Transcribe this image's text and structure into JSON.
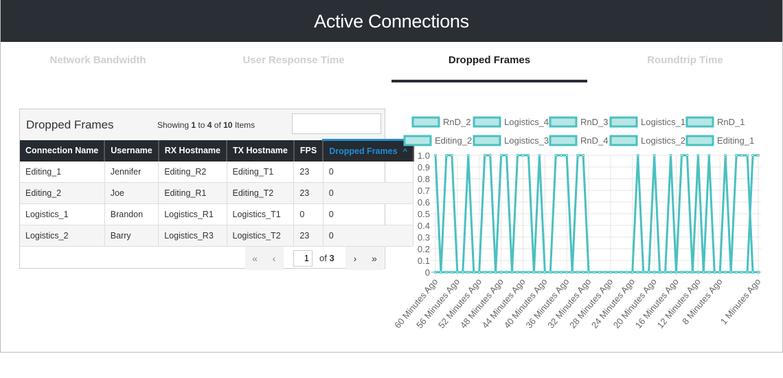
{
  "header": {
    "title": "Active Connections"
  },
  "tabs": [
    {
      "label": "Network Bandwidth",
      "active": false
    },
    {
      "label": "User Response Time",
      "active": false
    },
    {
      "label": "Dropped Frames",
      "active": true
    },
    {
      "label": "Roundtrip Time",
      "active": false
    }
  ],
  "table": {
    "title": "Dropped Frames",
    "showing": {
      "prefix": "Showing ",
      "from": "1",
      "to_label": " to ",
      "to": "4",
      "of_label": " of ",
      "total": "10",
      "suffix": " Items"
    },
    "search_value": "",
    "columns": [
      "Connection Name",
      "Username",
      "RX Hostname",
      "TX Hostname",
      "FPS",
      "Dropped Frames"
    ],
    "sort_icon": "^",
    "rows": [
      [
        "Editing_1",
        "Jennifer",
        "Editing_R2",
        "Editing_T1",
        "23",
        "0"
      ],
      [
        "Editing_2",
        "Joe",
        "Editing_R1",
        "Editing_T2",
        "23",
        "0"
      ],
      [
        "Logistics_1",
        "Brandon",
        "Logistics_R1",
        "Logistics_T1",
        "0",
        "0"
      ],
      [
        "Logistics_2",
        "Barry",
        "Logistics_R3",
        "Logistics_T2",
        "23",
        "0"
      ]
    ],
    "pager": {
      "first": "«",
      "prev": "‹",
      "page": "1",
      "of": "of",
      "pages": "3",
      "next": "›",
      "last": "»"
    }
  },
  "chart_data": {
    "type": "line",
    "color": "#4bc0c0",
    "ylim": [
      0,
      1
    ],
    "yticks": [
      "1.0",
      "0.9",
      "0.8",
      "0.7",
      "0.6",
      "0.5",
      "0.4",
      "0.3",
      "0.2",
      "0.1",
      "0"
    ],
    "x": [
      "60 Minutes Ago",
      "59 Minutes Ago",
      "58 Minutes Ago",
      "57 Minutes Ago",
      "56 Minutes Ago",
      "55 Minutes Ago",
      "54 Minutes Ago",
      "53 Minutes Ago",
      "52 Minutes Ago",
      "51 Minutes Ago",
      "50 Minutes Ago",
      "49 Minutes Ago",
      "48 Minutes Ago",
      "47 Minutes Ago",
      "46 Minutes Ago",
      "45 Minutes Ago",
      "44 Minutes Ago",
      "43 Minutes Ago",
      "42 Minutes Ago",
      "41 Minutes Ago",
      "40 Minutes Ago",
      "39 Minutes Ago",
      "38 Minutes Ago",
      "37 Minutes Ago",
      "36 Minutes Ago",
      "35 Minutes Ago",
      "34 Minutes Ago",
      "33 Minutes Ago",
      "32 Minutes Ago",
      "31 Minutes Ago",
      "30 Minutes Ago",
      "29 Minutes Ago",
      "28 Minutes Ago",
      "27 Minutes Ago",
      "26 Minutes Ago",
      "25 Minutes Ago",
      "24 Minutes Ago",
      "23 Minutes Ago",
      "22 Minutes Ago",
      "21 Minutes Ago",
      "20 Minutes Ago",
      "19 Minutes Ago",
      "18 Minutes Ago",
      "17 Minutes Ago",
      "16 Minutes Ago",
      "15 Minutes Ago",
      "14 Minutes Ago",
      "13 Minutes Ago",
      "12 Minutes Ago",
      "11 Minutes Ago",
      "10 Minutes Ago",
      "9 Minutes Ago",
      "8 Minutes Ago",
      "7 Minutes Ago",
      "6 Minutes Ago",
      "5 Minutes Ago",
      "4 Minutes Ago",
      "3 Minutes Ago",
      "2 Minutes Ago",
      "1 Minutes Ago"
    ],
    "xtick_labels": [
      "60 Minutes Ago",
      "56 Minutes Ago",
      "52 Minutes Ago",
      "48 Minutes Ago",
      "44 Minutes Ago",
      "40 Minutes Ago",
      "36 Minutes Ago",
      "32 Minutes Ago",
      "28 Minutes Ago",
      "24 Minutes Ago",
      "20 Minutes Ago",
      "16 Minutes Ago",
      "12 Minutes Ago",
      "8 Minutes Ago",
      "1 Minutes Ago"
    ],
    "series": [
      {
        "name": "RnD_2",
        "values": [
          1,
          0,
          1,
          1,
          0,
          0,
          0,
          0,
          0,
          0,
          0,
          0,
          0,
          0,
          0,
          0,
          0,
          0,
          0,
          0,
          0,
          0,
          0,
          0,
          0,
          0,
          0,
          0,
          0,
          0,
          0,
          0,
          0,
          0,
          0,
          0,
          0,
          0,
          0,
          0,
          0,
          0,
          0,
          0,
          0,
          0,
          0,
          0,
          0,
          0,
          0,
          0,
          0,
          0,
          0,
          0,
          0,
          0,
          0,
          0
        ]
      },
      {
        "name": "Logistics_4",
        "values": [
          0,
          0,
          0,
          0,
          0,
          0,
          1,
          0,
          0,
          1,
          1,
          0,
          0,
          0,
          0,
          0,
          0,
          0,
          0,
          0,
          0,
          0,
          0,
          0,
          0,
          0,
          0,
          0,
          0,
          0,
          0,
          0,
          0,
          0,
          0,
          0,
          0,
          0,
          0,
          0,
          0,
          0,
          0,
          0,
          0,
          0,
          0,
          0,
          0,
          0,
          0,
          0,
          0,
          0,
          0,
          0,
          0,
          0,
          0,
          0
        ]
      },
      {
        "name": "RnD_3",
        "values": [
          0,
          0,
          0,
          0,
          0,
          0,
          0,
          0,
          0,
          0,
          0,
          0,
          1,
          1,
          0,
          1,
          1,
          1,
          0,
          0,
          0,
          0,
          0,
          0,
          0,
          0,
          0,
          0,
          0,
          0,
          0,
          0,
          0,
          0,
          0,
          0,
          0,
          0,
          0,
          0,
          0,
          0,
          0,
          0,
          0,
          0,
          0,
          0,
          0,
          0,
          0,
          0,
          0,
          0,
          0,
          0,
          0,
          0,
          0,
          0
        ]
      },
      {
        "name": "Logistics_1",
        "values": [
          0,
          0,
          0,
          0,
          0,
          0,
          0,
          0,
          0,
          0,
          0,
          0,
          0,
          0,
          0,
          0,
          0,
          0,
          0,
          1,
          0,
          0,
          1,
          1,
          1,
          0,
          0,
          0,
          0,
          0,
          0,
          0,
          0,
          0,
          0,
          0,
          0,
          0,
          0,
          0,
          0,
          0,
          0,
          0,
          0,
          0,
          0,
          0,
          0,
          0,
          0,
          0,
          0,
          0,
          0,
          0,
          0,
          0,
          0,
          0
        ]
      },
      {
        "name": "RnD_1",
        "values": [
          0,
          0,
          0,
          0,
          0,
          0,
          0,
          0,
          0,
          0,
          0,
          0,
          0,
          0,
          0,
          0,
          0,
          0,
          0,
          0,
          0,
          0,
          0,
          0,
          0,
          0,
          1,
          1,
          0,
          0,
          0,
          0,
          0,
          0,
          0,
          0,
          0,
          0,
          0,
          0,
          0,
          0,
          0,
          0,
          0,
          0,
          0,
          0,
          0,
          0,
          0,
          0,
          0,
          0,
          0,
          0,
          0,
          0,
          0,
          0
        ]
      },
      {
        "name": "Editing_2",
        "values": [
          0,
          0,
          0,
          0,
          0,
          0,
          0,
          0,
          0,
          0,
          0,
          0,
          0,
          0,
          0,
          0,
          0,
          0,
          0,
          0,
          0,
          0,
          0,
          0,
          0,
          0,
          0,
          0,
          0,
          0,
          0,
          0,
          0,
          0,
          0,
          0,
          0,
          1,
          0,
          0,
          1,
          0,
          0,
          0,
          0,
          0,
          0,
          0,
          0,
          0,
          0,
          0,
          0,
          0,
          0,
          0,
          0,
          0,
          0,
          0
        ]
      },
      {
        "name": "Logistics_3",
        "values": [
          0,
          0,
          0,
          0,
          0,
          0,
          0,
          0,
          0,
          0,
          0,
          0,
          0,
          0,
          0,
          0,
          0,
          0,
          0,
          0,
          0,
          0,
          0,
          0,
          0,
          0,
          0,
          0,
          0,
          0,
          0,
          0,
          0,
          0,
          0,
          0,
          0,
          0,
          0,
          0,
          0,
          0,
          0,
          1,
          0,
          1,
          1,
          0,
          0,
          0,
          0,
          0,
          0,
          0,
          0,
          0,
          0,
          0,
          0,
          0
        ]
      },
      {
        "name": "RnD_4",
        "values": [
          0,
          0,
          0,
          0,
          0,
          0,
          0,
          0,
          0,
          0,
          0,
          0,
          0,
          0,
          0,
          0,
          0,
          0,
          0,
          0,
          0,
          0,
          0,
          0,
          0,
          0,
          0,
          0,
          0,
          0,
          0,
          0,
          0,
          0,
          0,
          0,
          0,
          0,
          0,
          0,
          0,
          0,
          0,
          0,
          0,
          0,
          0,
          0,
          1,
          0,
          1,
          0,
          0,
          0,
          0,
          0,
          0,
          0,
          0,
          0
        ]
      },
      {
        "name": "Logistics_2",
        "values": [
          0,
          0,
          0,
          0,
          0,
          0,
          0,
          0,
          0,
          0,
          0,
          0,
          0,
          0,
          0,
          0,
          0,
          0,
          0,
          0,
          0,
          0,
          0,
          0,
          0,
          0,
          0,
          0,
          0,
          0,
          0,
          0,
          0,
          0,
          0,
          0,
          0,
          0,
          0,
          0,
          0,
          0,
          0,
          0,
          0,
          0,
          0,
          0,
          0,
          0,
          0,
          0,
          0,
          1,
          0,
          1,
          1,
          1,
          0,
          0
        ]
      },
      {
        "name": "Editing_1",
        "values": [
          0,
          0,
          0,
          0,
          0,
          0,
          0,
          0,
          0,
          0,
          0,
          0,
          0,
          0,
          0,
          0,
          0,
          0,
          0,
          0,
          0,
          0,
          0,
          0,
          0,
          0,
          0,
          0,
          0,
          0,
          0,
          0,
          0,
          0,
          0,
          0,
          0,
          0,
          0,
          0,
          0,
          0,
          0,
          0,
          0,
          0,
          0,
          0,
          0,
          0,
          0,
          0,
          0,
          0,
          0,
          0,
          0,
          0,
          1,
          1
        ]
      }
    ]
  }
}
